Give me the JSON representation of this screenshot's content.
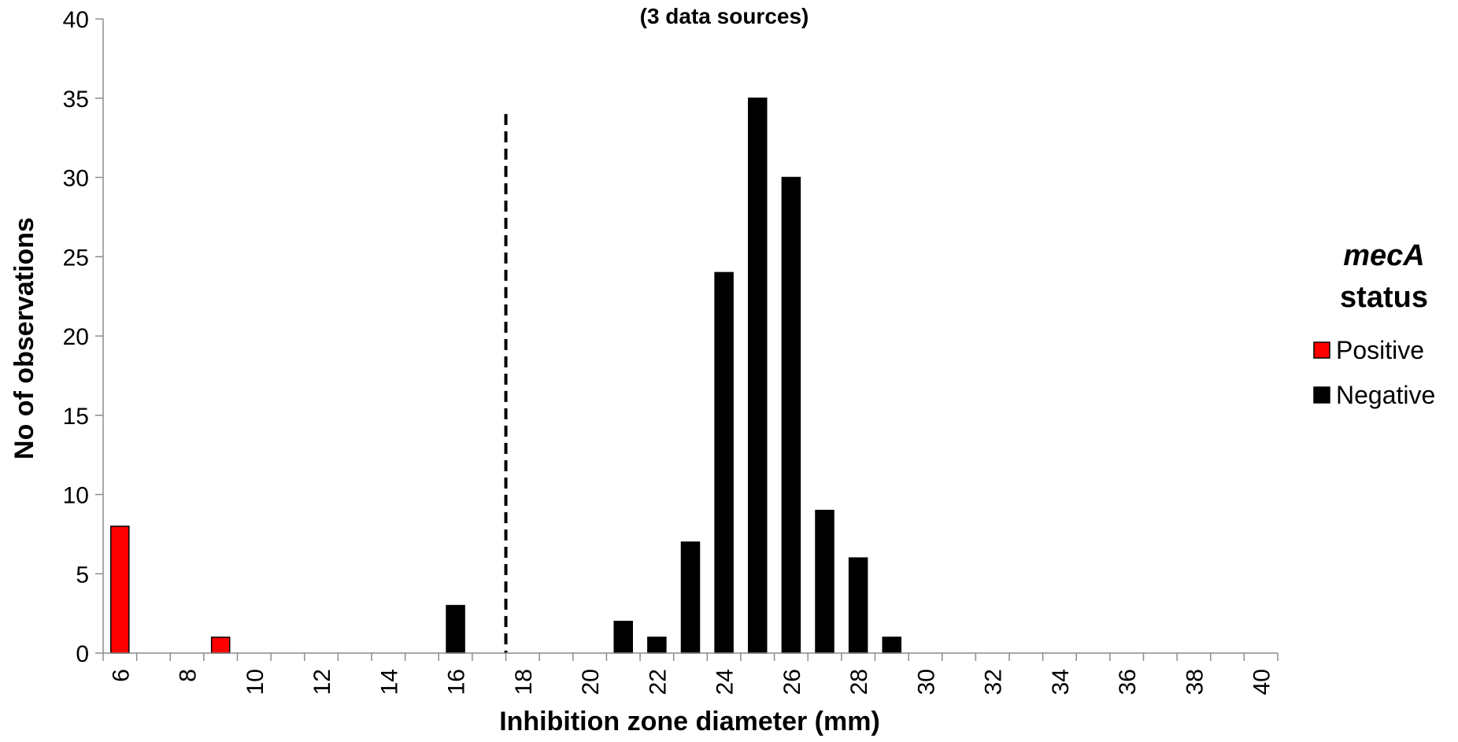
{
  "chart_data": {
    "type": "bar",
    "title": "(3 data sources)",
    "xlabel": "Inhibition zone diameter (mm)",
    "ylabel": "No of observations",
    "xlim": [
      6,
      40
    ],
    "ylim": [
      0,
      40
    ],
    "y_ticks": [
      0,
      5,
      10,
      15,
      20,
      25,
      30,
      35,
      40
    ],
    "x_ticks": [
      6,
      8,
      10,
      12,
      14,
      16,
      18,
      20,
      22,
      24,
      26,
      28,
      30,
      32,
      34,
      36,
      38,
      40
    ],
    "grid": false,
    "legend": {
      "title_italic": "mecA",
      "title_rest": "status",
      "position": "right"
    },
    "breakpoint_line": {
      "x": 17.5,
      "style": "dashed"
    },
    "series": [
      {
        "name": "Positive",
        "color": "#ff0000",
        "x": [
          6,
          9
        ],
        "values": [
          8,
          1
        ]
      },
      {
        "name": "Negative",
        "color": "#000000",
        "x": [
          16,
          21,
          22,
          23,
          24,
          25,
          26,
          27,
          28,
          29
        ],
        "values": [
          3,
          2,
          1,
          7,
          24,
          35,
          30,
          9,
          6,
          1
        ]
      }
    ]
  }
}
